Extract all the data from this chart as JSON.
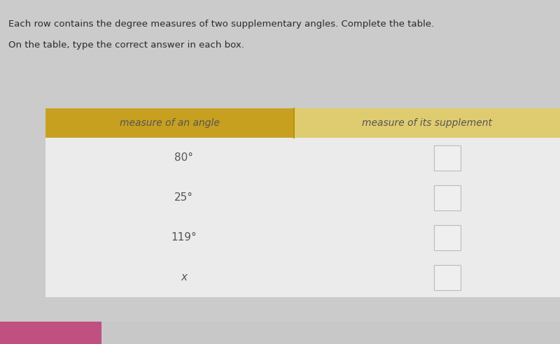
{
  "title_line1": "Each row contains the degree measures of two supplementary angles. Complete the table.",
  "title_line2": "On the table, type the correct answer in each box.",
  "col1_header": "measure of an angle",
  "col2_header": "measure of its supplement",
  "rows": [
    "80°",
    "25°",
    "119°",
    "x"
  ],
  "header_bg_left": "#C8A020",
  "header_bg_right": "#E0CC70",
  "row_bg": "#EBEBEB",
  "bg_color": "#C8C8C8",
  "text_color": "#555555",
  "header_text_color": "#555555",
  "box_fill": "#EFEFEF",
  "box_edge_color": "#BBBBBB",
  "pink_bar_color": "#C05080",
  "fig_width": 8.0,
  "fig_height": 4.92
}
